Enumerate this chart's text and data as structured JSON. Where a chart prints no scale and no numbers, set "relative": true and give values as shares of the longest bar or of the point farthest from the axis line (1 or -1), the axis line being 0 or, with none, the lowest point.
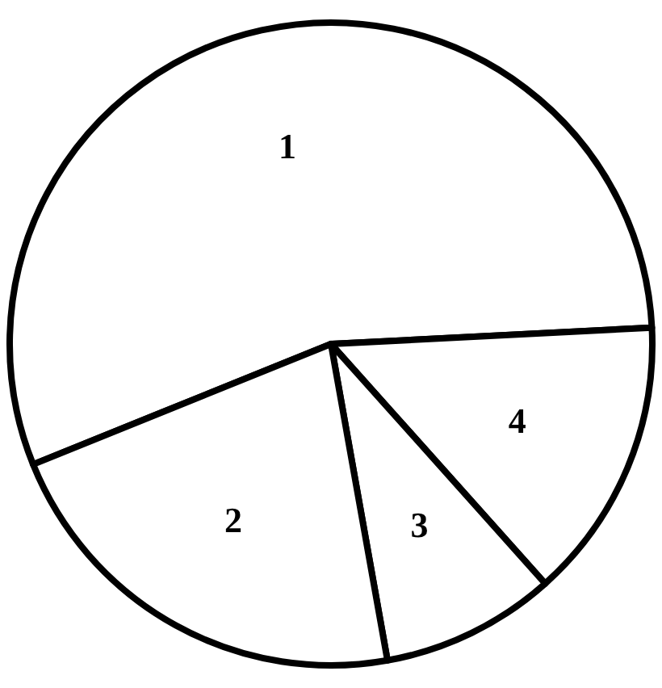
{
  "chart_data": {
    "type": "pie",
    "categories": [
      "1",
      "4",
      "3",
      "2"
    ],
    "values": [
      55.3,
      14.2,
      8.8,
      21.7
    ],
    "colors": [
      "#ffffff",
      "#ffffff",
      "#ffffff",
      "#ffffff"
    ],
    "relative": true
  }
}
